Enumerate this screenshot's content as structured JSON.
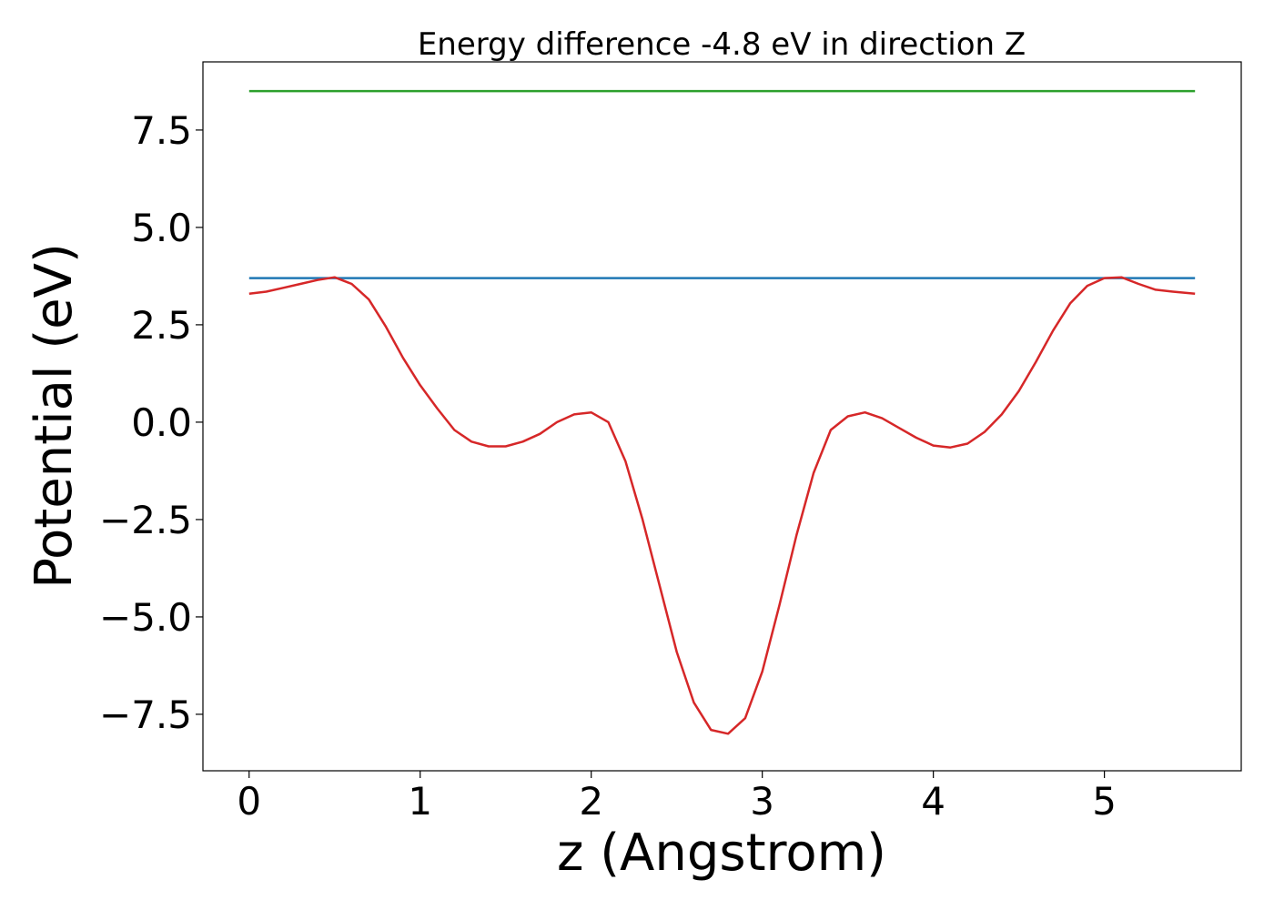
{
  "chart_data": {
    "type": "line",
    "title": "Energy difference -4.8 eV in direction Z",
    "xlabel": "z (Angstrom)",
    "ylabel": "Potential (eV)",
    "xlim": [
      -0.27,
      5.8
    ],
    "ylim": [
      -8.95,
      9.25
    ],
    "grid": false,
    "xticks": [
      0,
      1,
      2,
      3,
      4,
      5
    ],
    "xtick_labels": [
      "0",
      "1",
      "2",
      "3",
      "4",
      "5"
    ],
    "yticks": [
      -7.5,
      -5.0,
      -2.5,
      0.0,
      2.5,
      5.0,
      7.5
    ],
    "ytick_labels": [
      "−7.5",
      "−5.0",
      "−2.5",
      "0.0",
      "2.5",
      "5.0",
      "7.5"
    ],
    "series": [
      {
        "color": "#2ca02c",
        "x": [
          0,
          5.53
        ],
        "y": [
          8.5,
          8.5
        ]
      },
      {
        "color": "#1f77b4",
        "x": [
          0,
          5.53
        ],
        "y": [
          3.7,
          3.7
        ]
      },
      {
        "color": "#d62728",
        "x": [
          0,
          0.1,
          0.2,
          0.3,
          0.4,
          0.5,
          0.6,
          0.7,
          0.8,
          0.9,
          1.0,
          1.1,
          1.2,
          1.3,
          1.4,
          1.5,
          1.6,
          1.7,
          1.8,
          1.9,
          2.0,
          2.1,
          2.2,
          2.3,
          2.4,
          2.5,
          2.6,
          2.7,
          2.8,
          2.9,
          3.0,
          3.1,
          3.2,
          3.3,
          3.4,
          3.5,
          3.6,
          3.7,
          3.8,
          3.9,
          4.0,
          4.1,
          4.2,
          4.3,
          4.4,
          4.5,
          4.6,
          4.7,
          4.8,
          4.9,
          5.0,
          5.1,
          5.2,
          5.3,
          5.4,
          5.53
        ],
        "y": [
          3.3,
          3.35,
          3.45,
          3.55,
          3.65,
          3.72,
          3.55,
          3.15,
          2.45,
          1.65,
          0.95,
          0.35,
          -0.2,
          -0.5,
          -0.62,
          -0.62,
          -0.5,
          -0.3,
          0.0,
          0.2,
          0.25,
          0.0,
          -1.0,
          -2.5,
          -4.2,
          -5.9,
          -7.2,
          -7.9,
          -8.0,
          -7.6,
          -6.4,
          -4.7,
          -2.9,
          -1.3,
          -0.2,
          0.15,
          0.25,
          0.1,
          -0.15,
          -0.4,
          -0.6,
          -0.65,
          -0.55,
          -0.25,
          0.2,
          0.8,
          1.55,
          2.35,
          3.05,
          3.5,
          3.7,
          3.72,
          3.55,
          3.4,
          3.35,
          3.3
        ]
      }
    ]
  }
}
